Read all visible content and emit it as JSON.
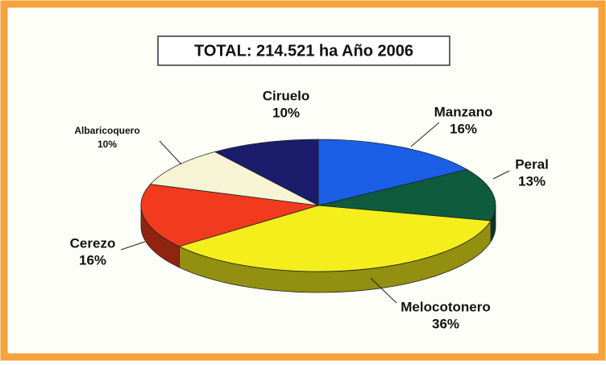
{
  "chart_data": {
    "type": "pie3d",
    "title": "TOTAL: 214.521 ha  Año 2006",
    "categories": [
      "Manzano",
      "Peral",
      "Melocotonero",
      "Cerezo",
      "Albaricoquero",
      "Ciruelo"
    ],
    "values": [
      16,
      13,
      36,
      16,
      10,
      10
    ],
    "value_labels": [
      "16%",
      "13%",
      "36%",
      "16%",
      "10%",
      "10%"
    ],
    "colors": [
      "#1a5fe6",
      "#0e5b3e",
      "#f4ef1c",
      "#f23a1e",
      "#f7f4d6",
      "#1b1c6c"
    ]
  }
}
